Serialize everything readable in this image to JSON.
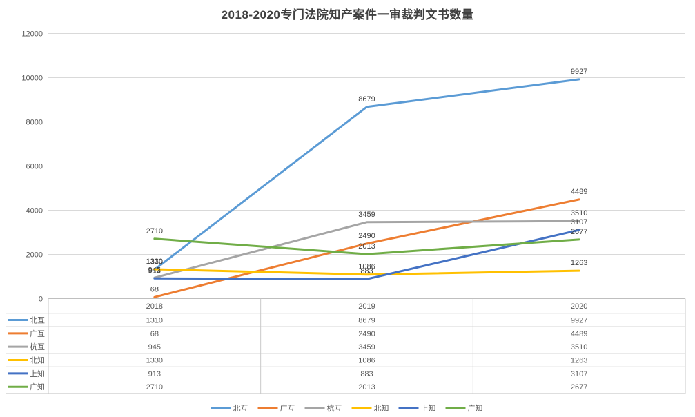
{
  "chart_data": {
    "type": "line",
    "title": "2018-2020专门法院知产案件一审裁判文书数量",
    "categories": [
      "2018",
      "2019",
      "2020"
    ],
    "series": [
      {
        "name": "北互",
        "color": "#5B9BD5",
        "values": [
          1310,
          8679,
          9927
        ]
      },
      {
        "name": "广互",
        "color": "#ED7D31",
        "values": [
          68,
          2490,
          4489
        ]
      },
      {
        "name": "杭互",
        "color": "#A5A5A5",
        "values": [
          945,
          3459,
          3510
        ]
      },
      {
        "name": "北知",
        "color": "#FFC000",
        "values": [
          1330,
          1086,
          1263
        ]
      },
      {
        "name": "上知",
        "color": "#4472C4",
        "values": [
          913,
          883,
          3107
        ]
      },
      {
        "name": "广知",
        "color": "#70AD47",
        "values": [
          2710,
          2013,
          2677
        ]
      }
    ],
    "xlabel": "",
    "ylabel": "",
    "ylim": [
      0,
      12000
    ],
    "ytick_step": 2000,
    "yticks": [
      0,
      2000,
      4000,
      6000,
      8000,
      10000,
      12000
    ],
    "grid": true,
    "data_labels": true,
    "data_table": true,
    "legend_position": "bottom",
    "colors": {
      "gridline": "#D9D9D9",
      "axis_line": "#BFBFBF",
      "table_border": "#C9C9C9",
      "tick_label": "#595959",
      "data_label": "#404040",
      "title": "#404040",
      "background": "#FFFFFF"
    }
  }
}
